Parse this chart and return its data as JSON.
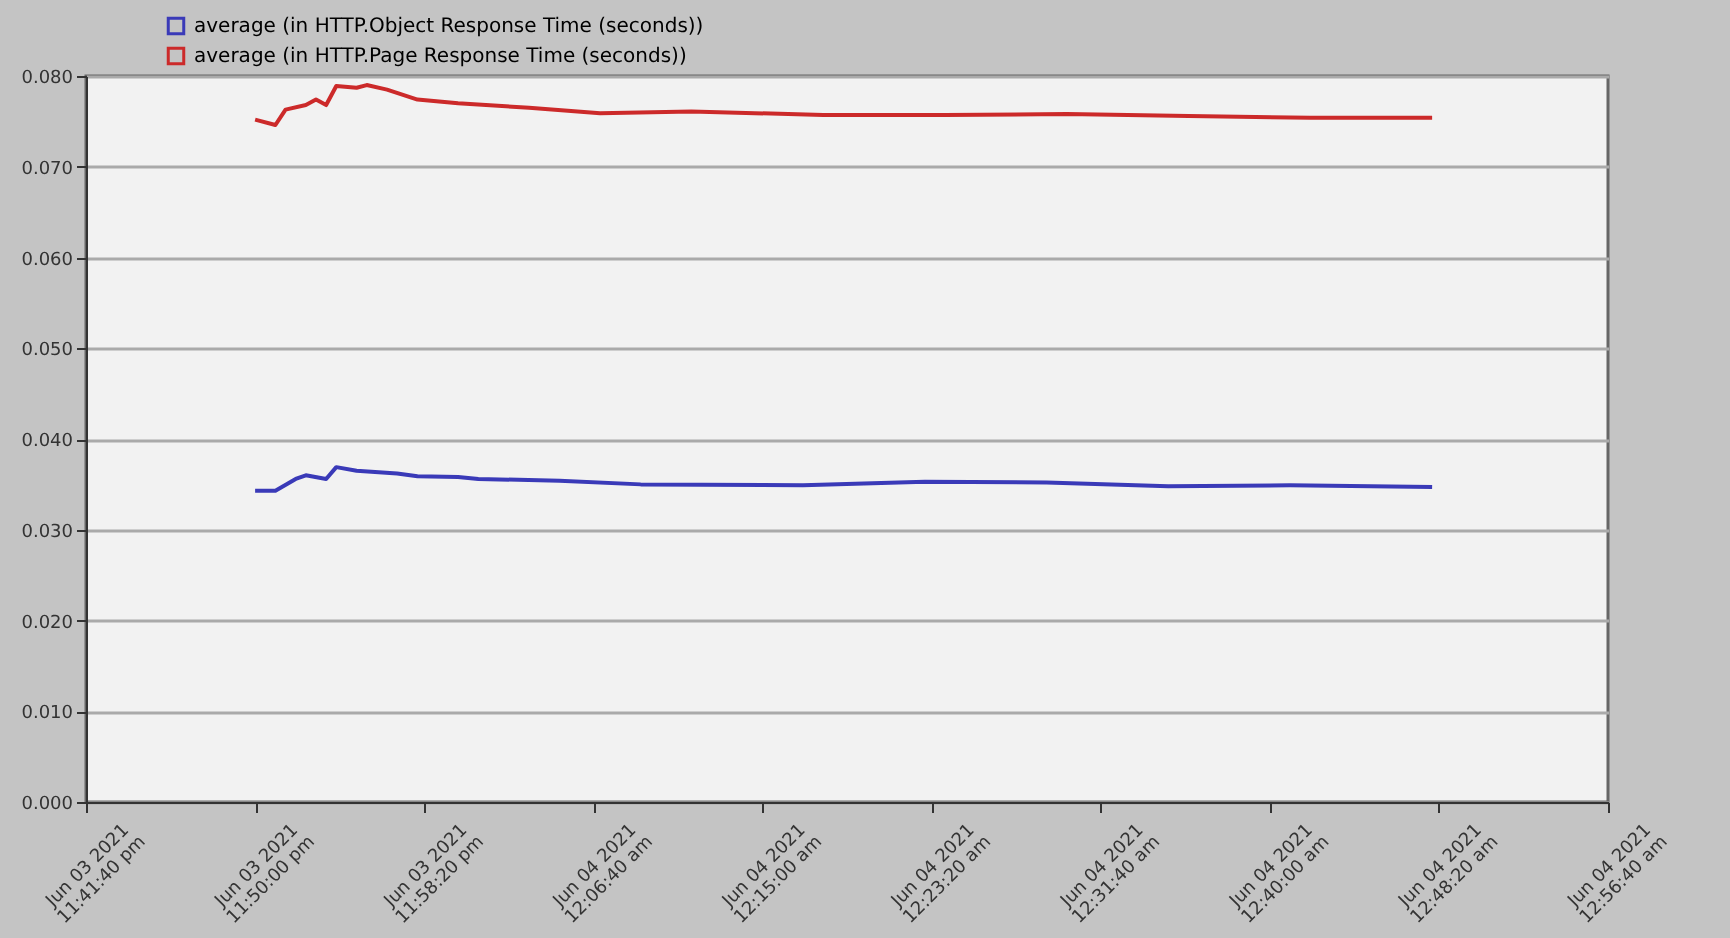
{
  "chart_data": {
    "type": "line",
    "legend": "top left",
    "grid": "y",
    "line_style": "solid",
    "marker": "none",
    "xlim": [
      "2021-06-03T23:41:40",
      "2021-06-04T00:56:40"
    ],
    "xticks": [
      {
        "value": "2021-06-03T23:41:40",
        "label": "Jun 03 2021 11:41:40 pm"
      },
      {
        "value": "2021-06-03T23:50:00",
        "label": "Jun 03 2021 11:50:00 pm"
      },
      {
        "value": "2021-06-03T23:58:20",
        "label": "Jun 03 2021 11:58:20 pm"
      },
      {
        "value": "2021-06-04T00:06:40",
        "label": "Jun 04 2021 12:06:40 am"
      },
      {
        "value": "2021-06-04T00:15:00",
        "label": "Jun 04 2021 12:15:00 am"
      },
      {
        "value": "2021-06-04T00:23:20",
        "label": "Jun 04 2021 12:23:20 am"
      },
      {
        "value": "2021-06-04T00:31:40",
        "label": "Jun 04 2021 12:31:40 am"
      },
      {
        "value": "2021-06-04T00:40:00",
        "label": "Jun 04 2021 12:40:00 am"
      },
      {
        "value": "2021-06-04T00:48:20",
        "label": "Jun 04 2021 12:48:20 am"
      },
      {
        "value": "2021-06-04T00:56:40",
        "label": "Jun 04 2021 12:56:40 am"
      }
    ],
    "ylim": [
      0,
      0.08
    ],
    "yticks": [
      {
        "value": 0,
        "label": "0.000"
      },
      {
        "value": 0.01,
        "label": "0.010"
      },
      {
        "value": 0.02,
        "label": "0.020"
      },
      {
        "value": 0.03,
        "label": "0.030"
      },
      {
        "value": 0.04,
        "label": "0.040"
      },
      {
        "value": 0.05,
        "label": "0.050"
      },
      {
        "value": 0.06,
        "label": "0.060"
      },
      {
        "value": 0.07,
        "label": "0.070"
      },
      {
        "value": 0.08,
        "label": "0.080"
      }
    ],
    "series": [
      {
        "name": "average (in HTTP.Object Response Time (seconds))",
        "color": "#3a3ab8",
        "x": [
          "2021-06-03T23:50",
          "2021-06-03T23:51",
          "2021-06-03T23:52",
          "2021-06-03T23:52:30",
          "2021-06-03T23:53:30",
          "2021-06-03T23:54",
          "2021-06-03T23:55",
          "2021-06-03T23:57",
          "2021-06-03T23:58",
          "2021-06-04T00:00",
          "2021-06-04T00:01",
          "2021-06-04T00:05",
          "2021-06-04T00:09",
          "2021-06-04T00:17",
          "2021-06-04T00:23",
          "2021-06-04T00:29",
          "2021-06-04T00:35",
          "2021-06-04T00:41",
          "2021-06-04T00:48"
        ],
        "values": [
          0.0343,
          0.0343,
          0.0356,
          0.036,
          0.0356,
          0.0369,
          0.0365,
          0.0362,
          0.0359,
          0.0358,
          0.0356,
          0.0354,
          0.035,
          0.0349,
          0.0353,
          0.0352,
          0.0348,
          0.0349,
          0.0347
        ]
      },
      {
        "name": "average (in HTTP.Page Response Time (seconds))",
        "color": "#cc2a2a",
        "x": [
          "2021-06-03T23:50",
          "2021-06-03T23:51",
          "2021-06-03T23:51:30",
          "2021-06-03T23:52:30",
          "2021-06-03T23:53",
          "2021-06-03T23:53:30",
          "2021-06-03T23:54",
          "2021-06-03T23:55",
          "2021-06-03T23:55:30",
          "2021-06-03T23:56:30",
          "2021-06-03T23:58",
          "2021-06-04T00:00",
          "2021-06-04T00:03:30",
          "2021-06-04T00:07",
          "2021-06-04T00:11:30",
          "2021-06-04T00:18",
          "2021-06-04T00:24",
          "2021-06-04T00:30",
          "2021-06-04T00:36",
          "2021-06-04T00:42",
          "2021-06-04T00:48"
        ],
        "values": [
          0.0752,
          0.0746,
          0.0763,
          0.0768,
          0.0774,
          0.0768,
          0.0789,
          0.0787,
          0.079,
          0.0785,
          0.0774,
          0.077,
          0.0765,
          0.0759,
          0.0761,
          0.0757,
          0.0757,
          0.0758,
          0.0756,
          0.0754,
          0.0754
        ]
      }
    ]
  }
}
